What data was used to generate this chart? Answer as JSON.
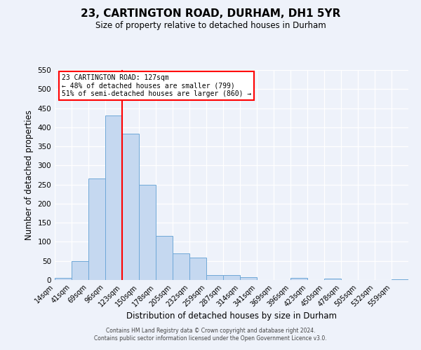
{
  "title": "23, CARTINGTON ROAD, DURHAM, DH1 5YR",
  "subtitle": "Size of property relative to detached houses in Durham",
  "xlabel": "Distribution of detached houses by size in Durham",
  "ylabel": "Number of detached properties",
  "bar_labels": [
    "14sqm",
    "41sqm",
    "69sqm",
    "96sqm",
    "123sqm",
    "150sqm",
    "178sqm",
    "205sqm",
    "232sqm",
    "259sqm",
    "287sqm",
    "314sqm",
    "341sqm",
    "369sqm",
    "396sqm",
    "423sqm",
    "450sqm",
    "478sqm",
    "505sqm",
    "532sqm",
    "559sqm"
  ],
  "bar_heights": [
    5,
    50,
    265,
    430,
    383,
    250,
    115,
    70,
    58,
    12,
    12,
    8,
    0,
    0,
    6,
    0,
    3,
    0,
    0,
    0,
    2
  ],
  "bar_color": "#c5d8f0",
  "bar_edge_color": "#6fa8d8",
  "vline_x": 4,
  "vline_color": "red",
  "annotation_title": "23 CARTINGTON ROAD: 127sqm",
  "annotation_line1": "← 48% of detached houses are smaller (799)",
  "annotation_line2": "51% of semi-detached houses are larger (860) →",
  "annotation_box_color": "white",
  "annotation_box_edge_color": "red",
  "ylim": [
    0,
    550
  ],
  "yticks": [
    0,
    50,
    100,
    150,
    200,
    250,
    300,
    350,
    400,
    450,
    500,
    550
  ],
  "background_color": "#eef2fa",
  "grid_color": "#ffffff",
  "footer_line1": "Contains HM Land Registry data © Crown copyright and database right 2024.",
  "footer_line2": "Contains public sector information licensed under the Open Government Licence v3.0."
}
